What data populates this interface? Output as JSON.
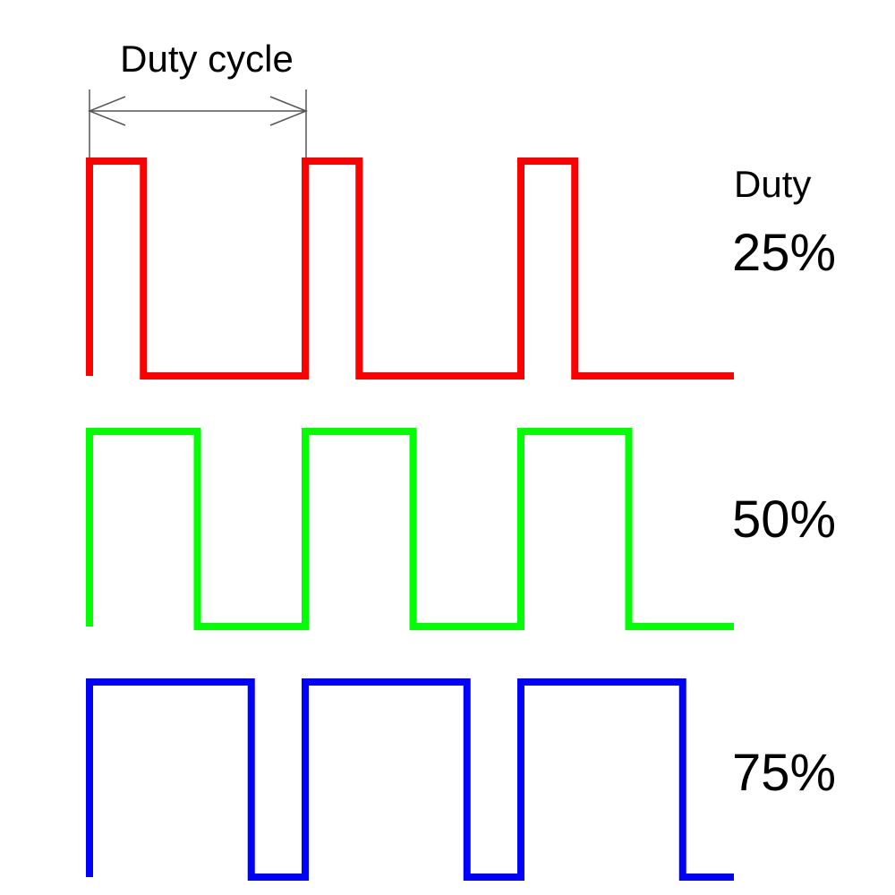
{
  "diagram": {
    "period_label": "Duty cycle",
    "duty_heading": "Duty",
    "periods_shown": 3,
    "waveforms": [
      {
        "label": "25%",
        "duty": 0.25,
        "color": "#ff0000"
      },
      {
        "label": "50%",
        "duty": 0.5,
        "color": "#00ff00"
      },
      {
        "label": "75%",
        "duty": 0.75,
        "color": "#0000ff"
      }
    ],
    "dimension_line_color": "#555555"
  }
}
